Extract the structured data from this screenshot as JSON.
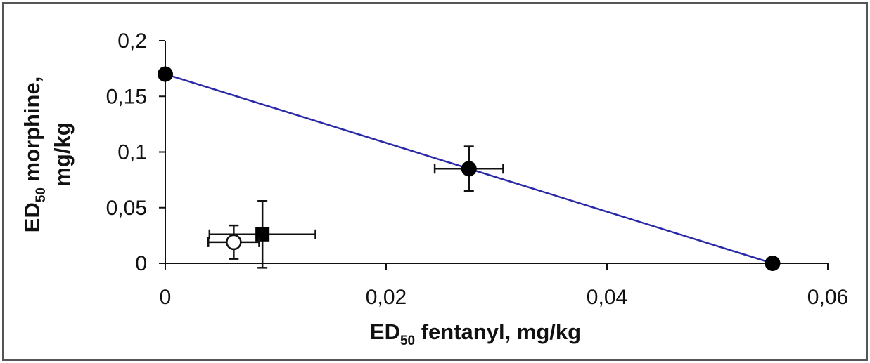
{
  "chart_data": {
    "type": "scatter",
    "xlabel": {
      "prefix": "ED",
      "sub": "50",
      "rest": " fentanyl, mg/kg"
    },
    "ylabel": {
      "line1_prefix": "ED",
      "line1_sub": "50",
      "line1_rest": " morphine,",
      "line2": "mg/kg"
    },
    "xlim": [
      0,
      0.06
    ],
    "ylim": [
      0,
      0.2
    ],
    "x_ticks": [
      {
        "value": 0,
        "label": "0"
      },
      {
        "value": 0.02,
        "label": "0,02"
      },
      {
        "value": 0.04,
        "label": "0,04"
      },
      {
        "value": 0.06,
        "label": "0,06"
      }
    ],
    "y_ticks": [
      {
        "value": 0,
        "label": "0"
      },
      {
        "value": 0.05,
        "label": "0,05"
      },
      {
        "value": 0.1,
        "label": "0,1"
      },
      {
        "value": 0.15,
        "label": "0,15"
      },
      {
        "value": 0.2,
        "label": "0,2"
      }
    ],
    "grid": false,
    "line": {
      "x": [
        0,
        0.055
      ],
      "y": [
        0.17,
        0
      ],
      "color": "#2a2aa6"
    },
    "points": [
      {
        "x": 0,
        "y": 0.17,
        "marker": "filled-circle"
      },
      {
        "x": 0.055,
        "y": 0,
        "marker": "filled-circle"
      },
      {
        "x": 0.0275,
        "y": 0.085,
        "xerr": 0.0031,
        "yerr": 0.02,
        "marker": "filled-circle"
      },
      {
        "x": 0.0088,
        "y": 0.026,
        "xerr": 0.0048,
        "yerr": 0.03,
        "marker": "filled-square"
      },
      {
        "x": 0.0062,
        "y": 0.019,
        "xerr": 0.0023,
        "yerr": 0.015,
        "marker": "open-circle"
      }
    ]
  }
}
